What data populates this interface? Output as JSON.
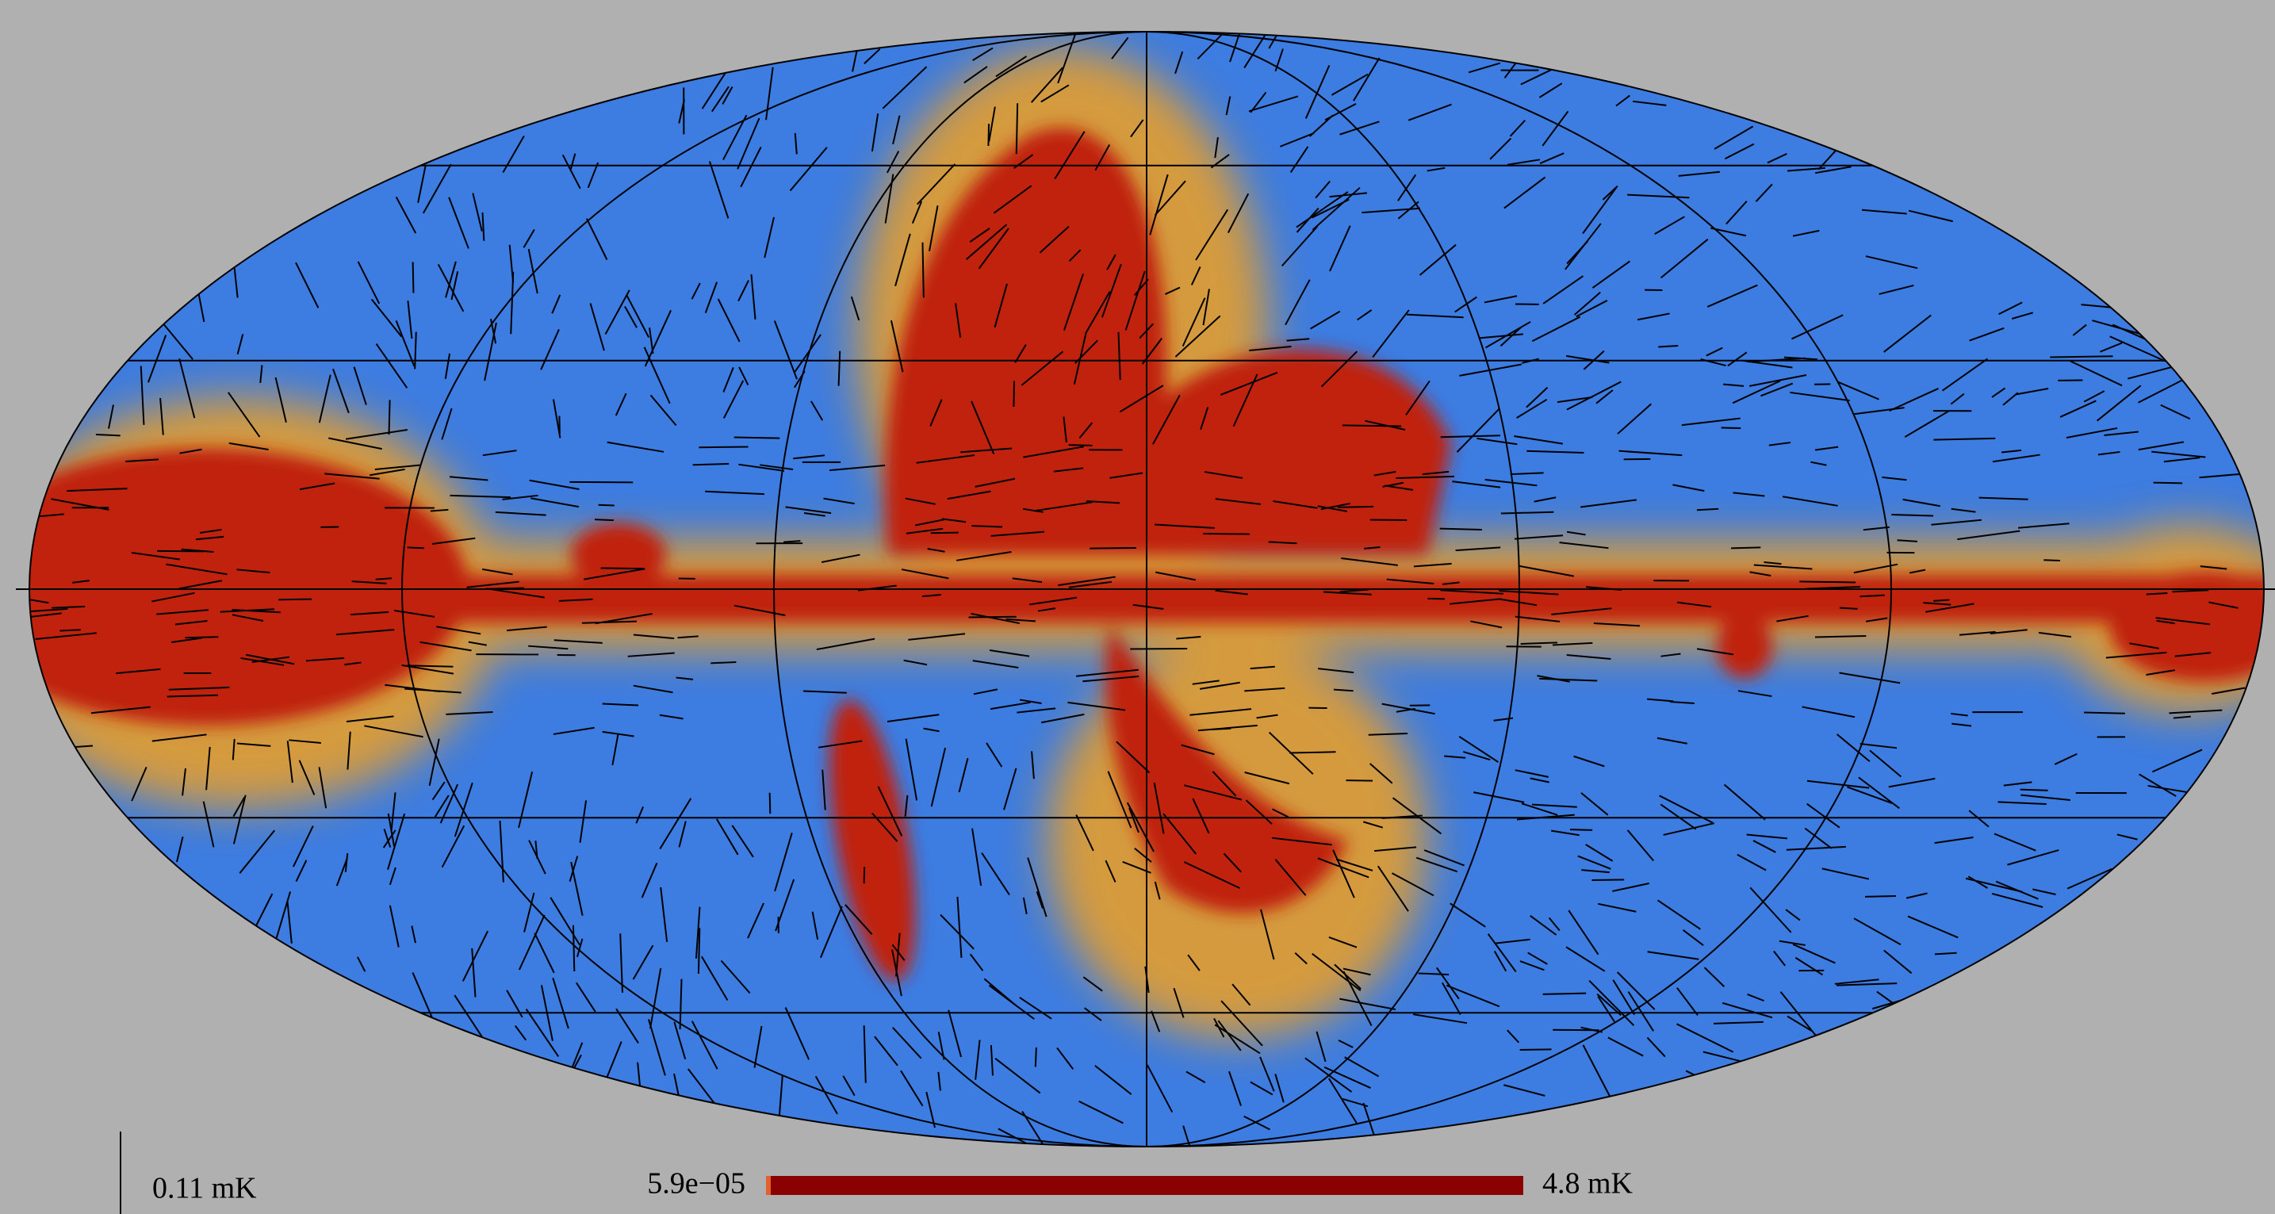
{
  "scale_bar": {
    "label": "0.11 mK"
  },
  "colorbar": {
    "min_label": "5.9e−05",
    "max_label": "4.8 mK"
  }
}
